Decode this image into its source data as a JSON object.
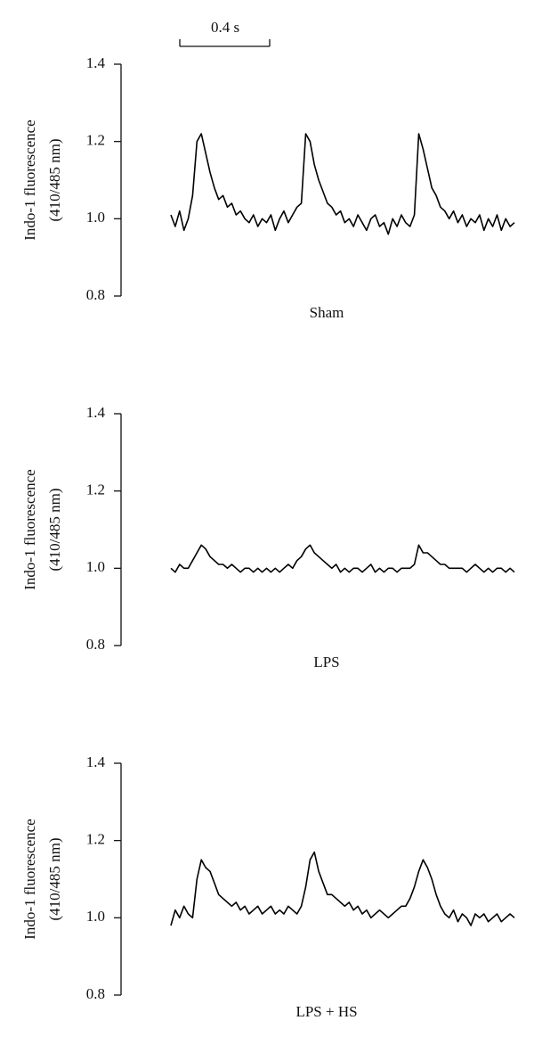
{
  "scale_bar_label": "0.4 s",
  "chart_data": [
    {
      "type": "line",
      "ylabel": [
        "Indo-1 fluorescence",
        "(410/485 nm)"
      ],
      "xlabel": "Sham",
      "color": "#000000",
      "ylim": [
        0.8,
        1.4
      ],
      "yticks": [
        0.8,
        {
          "value": 1,
          "label": "1.0"
        },
        1.2,
        1.4
      ],
      "values": [
        1.01,
        0.98,
        1.02,
        0.97,
        1.0,
        1.06,
        1.2,
        1.22,
        1.17,
        1.12,
        1.08,
        1.05,
        1.06,
        1.03,
        1.04,
        1.01,
        1.02,
        1.0,
        0.99,
        1.01,
        0.98,
        1.0,
        0.99,
        1.01,
        0.97,
        1.0,
        1.02,
        0.99,
        1.01,
        1.03,
        1.04,
        1.22,
        1.2,
        1.14,
        1.1,
        1.07,
        1.04,
        1.03,
        1.01,
        1.02,
        0.99,
        1.0,
        0.98,
        1.01,
        0.99,
        0.97,
        1.0,
        1.01,
        0.98,
        0.99,
        0.96,
        1.0,
        0.98,
        1.01,
        0.99,
        0.98,
        1.01,
        1.22,
        1.18,
        1.13,
        1.08,
        1.06,
        1.03,
        1.02,
        1.0,
        1.02,
        0.99,
        1.01,
        0.98,
        1.0,
        0.99,
        1.01,
        0.97,
        1.0,
        0.98,
        1.01,
        0.97,
        1.0,
        0.98,
        0.99
      ]
    },
    {
      "type": "line",
      "ylabel": [
        "Indo-1 fluorescence",
        "(410/485 nm)"
      ],
      "xlabel": "LPS",
      "color": "#000000",
      "ylim": [
        0.8,
        1.4
      ],
      "yticks": [
        0.8,
        {
          "value": 1,
          "label": "1.0"
        },
        1.2,
        1.4
      ],
      "values": [
        1.0,
        0.99,
        1.01,
        1.0,
        1.0,
        1.02,
        1.04,
        1.06,
        1.05,
        1.03,
        1.02,
        1.01,
        1.01,
        1.0,
        1.01,
        1.0,
        0.99,
        1.0,
        1.0,
        0.99,
        1.0,
        0.99,
        1.0,
        0.99,
        1.0,
        0.99,
        1.0,
        1.01,
        1.0,
        1.02,
        1.03,
        1.05,
        1.06,
        1.04,
        1.03,
        1.02,
        1.01,
        1.0,
        1.01,
        0.99,
        1.0,
        0.99,
        1.0,
        1.0,
        0.99,
        1.0,
        1.01,
        0.99,
        1.0,
        0.99,
        1.0,
        1.0,
        0.99,
        1.0,
        1.0,
        1.0,
        1.01,
        1.06,
        1.04,
        1.04,
        1.03,
        1.02,
        1.01,
        1.01,
        1.0,
        1.0,
        1.0,
        1.0,
        0.99,
        1.0,
        1.01,
        1.0,
        0.99,
        1.0,
        0.99,
        1.0,
        1.0,
        0.99,
        1.0,
        0.99
      ]
    },
    {
      "type": "line",
      "ylabel": [
        "Indo-1 fluorescence",
        "(410/485 nm)"
      ],
      "xlabel": "LPS + HS",
      "color": "#000000",
      "ylim": [
        0.8,
        1.4
      ],
      "yticks": [
        0.8,
        {
          "value": 1,
          "label": "1.0"
        },
        1.2,
        1.4
      ],
      "values": [
        0.98,
        1.02,
        1.0,
        1.03,
        1.01,
        1.0,
        1.1,
        1.15,
        1.13,
        1.12,
        1.09,
        1.06,
        1.05,
        1.04,
        1.03,
        1.04,
        1.02,
        1.03,
        1.01,
        1.02,
        1.03,
        1.01,
        1.02,
        1.03,
        1.01,
        1.02,
        1.01,
        1.03,
        1.02,
        1.01,
        1.03,
        1.08,
        1.15,
        1.17,
        1.12,
        1.09,
        1.06,
        1.06,
        1.05,
        1.04,
        1.03,
        1.04,
        1.02,
        1.03,
        1.01,
        1.02,
        1.0,
        1.01,
        1.02,
        1.01,
        1.0,
        1.01,
        1.02,
        1.03,
        1.03,
        1.05,
        1.08,
        1.12,
        1.15,
        1.13,
        1.1,
        1.06,
        1.03,
        1.01,
        1.0,
        1.02,
        0.99,
        1.01,
        1.0,
        0.98,
        1.01,
        1.0,
        1.01,
        0.99,
        1.0,
        1.01,
        0.99,
        1.0,
        1.01,
        1.0
      ]
    }
  ]
}
